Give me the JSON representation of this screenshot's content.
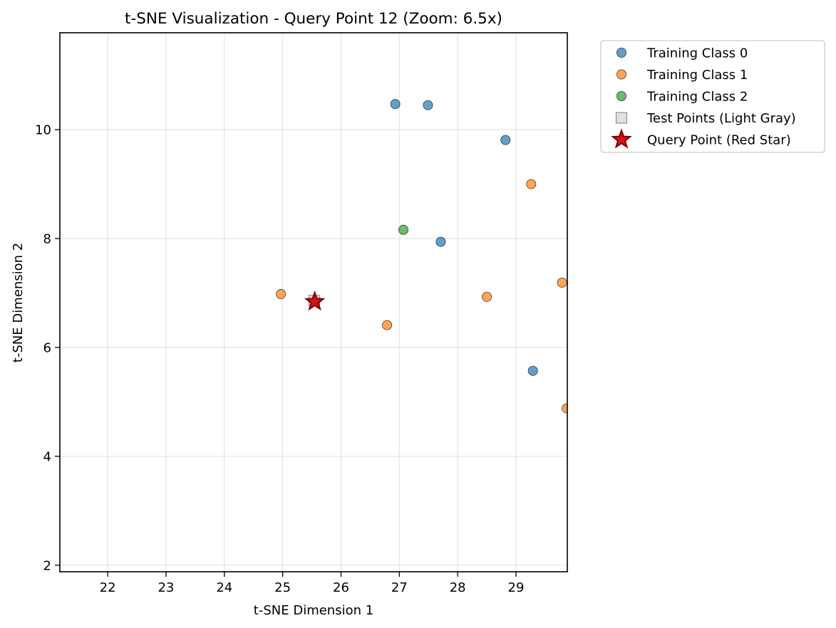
{
  "chart_data": {
    "type": "scatter",
    "title": "t-SNE Visualization - Query Point 12 (Zoom: 6.5x)",
    "xlabel": "t-SNE Dimension 1",
    "ylabel": "t-SNE Dimension 2",
    "xlim": [
      21.18,
      29.88
    ],
    "ylim": [
      1.88,
      11.78
    ],
    "xticks": [
      22,
      23,
      24,
      25,
      26,
      27,
      28,
      29
    ],
    "yticks": [
      2,
      4,
      6,
      8,
      10
    ],
    "xtick_labels": [
      "22",
      "23",
      "24",
      "25",
      "26",
      "27",
      "28",
      "29"
    ],
    "ytick_labels": [
      "2",
      "4",
      "6",
      "8",
      "10"
    ],
    "grid": true,
    "legend_position": "outside-top-right",
    "series": [
      {
        "name": "Training Class 0",
        "marker": "circle",
        "color": "#1f77b4",
        "points": [
          {
            "x": 26.93,
            "y": 10.47
          },
          {
            "x": 27.49,
            "y": 10.45
          },
          {
            "x": 28.82,
            "y": 9.81
          },
          {
            "x": 27.71,
            "y": 7.94
          },
          {
            "x": 29.29,
            "y": 5.57
          }
        ]
      },
      {
        "name": "Training Class 1",
        "marker": "circle",
        "color": "#ff7f0e",
        "points": [
          {
            "x": 29.26,
            "y": 9.0
          },
          {
            "x": 24.97,
            "y": 6.98
          },
          {
            "x": 28.5,
            "y": 6.93
          },
          {
            "x": 29.79,
            "y": 7.19
          },
          {
            "x": 26.79,
            "y": 6.41
          },
          {
            "x": 29.87,
            "y": 4.88
          }
        ]
      },
      {
        "name": "Training Class 2",
        "marker": "circle",
        "color": "#2ca02c",
        "points": [
          {
            "x": 27.07,
            "y": 8.16
          }
        ]
      },
      {
        "name": "Test Points (Light Gray)",
        "marker": "square",
        "color": "#d3d3d3",
        "points": [
          {
            "x": 25.54,
            "y": 6.86
          }
        ]
      },
      {
        "name": "Query Point (Red Star)",
        "marker": "star",
        "color": "#cc0000",
        "points": [
          {
            "x": 25.55,
            "y": 6.84
          }
        ]
      }
    ]
  }
}
